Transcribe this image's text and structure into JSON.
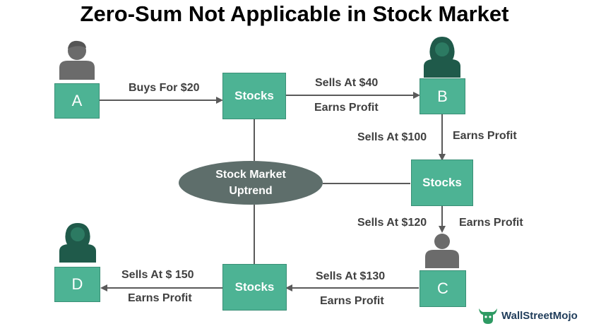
{
  "title": "Zero-Sum Not Applicable in Stock Market",
  "nodes": {
    "a": "A",
    "b": "B",
    "c": "C",
    "d": "D",
    "stocks_top": "Stocks",
    "stocks_right": "Stocks",
    "stocks_bottom": "Stocks"
  },
  "center": {
    "line1": "Stock Market",
    "line2": "Uptrend"
  },
  "labels": {
    "a_buys": "Buys For $20",
    "top_sells": "Sells At $40",
    "top_profit": "Earns Profit",
    "b_sells": "Sells At $100",
    "b_profit": "Earns Profit",
    "right_sells": "Sells At $120",
    "right_profit": "Earns Profit",
    "c_sells": "Sells At $130",
    "c_profit": "Earns Profit",
    "d_sells": "Sells At $ 150",
    "d_profit": "Earns Profit"
  },
  "brand": "WallStreetMojo",
  "colors": {
    "box": "#4db394",
    "ellipse": "#5e6e6b",
    "male_icon": "#6b6b6b",
    "female_icon": "#1f5a4a",
    "line": "#5a5a5a"
  },
  "icons": {
    "person_a": "male-person-icon",
    "person_b": "female-person-icon",
    "person_c": "male-person-icon",
    "person_d": "female-person-icon",
    "brand": "bull-logo-icon"
  }
}
